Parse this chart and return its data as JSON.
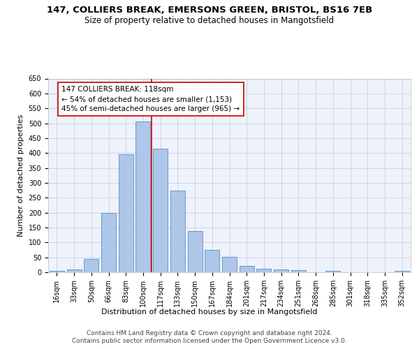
{
  "title_line1": "147, COLLIERS BREAK, EMERSONS GREEN, BRISTOL, BS16 7EB",
  "title_line2": "Size of property relative to detached houses in Mangotsfield",
  "xlabel": "Distribution of detached houses by size in Mangotsfield",
  "ylabel": "Number of detached properties",
  "footer_line1": "Contains HM Land Registry data © Crown copyright and database right 2024.",
  "footer_line2": "Contains public sector information licensed under the Open Government Licence v3.0.",
  "annotation_line1": "147 COLLIERS BREAK: 118sqm",
  "annotation_line2": "← 54% of detached houses are smaller (1,153)",
  "annotation_line3": "45% of semi-detached houses are larger (965) →",
  "bar_categories": [
    "16sqm",
    "33sqm",
    "50sqm",
    "66sqm",
    "83sqm",
    "100sqm",
    "117sqm",
    "133sqm",
    "150sqm",
    "167sqm",
    "184sqm",
    "201sqm",
    "217sqm",
    "234sqm",
    "251sqm",
    "268sqm",
    "285sqm",
    "301sqm",
    "318sqm",
    "335sqm",
    "352sqm"
  ],
  "bar_values": [
    5,
    10,
    45,
    200,
    395,
    505,
    415,
    275,
    138,
    75,
    52,
    22,
    12,
    9,
    8,
    0,
    5,
    0,
    0,
    0,
    4
  ],
  "bar_color": "#aec6e8",
  "bar_edge_color": "#5a8fc2",
  "vline_color": "#cc0000",
  "ylim": [
    0,
    650
  ],
  "yticks": [
    0,
    50,
    100,
    150,
    200,
    250,
    300,
    350,
    400,
    450,
    500,
    550,
    600,
    650
  ],
  "grid_color": "#c8d0e0",
  "background_color": "#eef2fb",
  "annotation_box_color": "#ffffff",
  "annotation_box_edge": "#cc0000",
  "title_fontsize": 9.5,
  "subtitle_fontsize": 8.5,
  "axis_label_fontsize": 8,
  "tick_fontsize": 7,
  "annotation_fontsize": 7.5,
  "footer_fontsize": 6.5
}
